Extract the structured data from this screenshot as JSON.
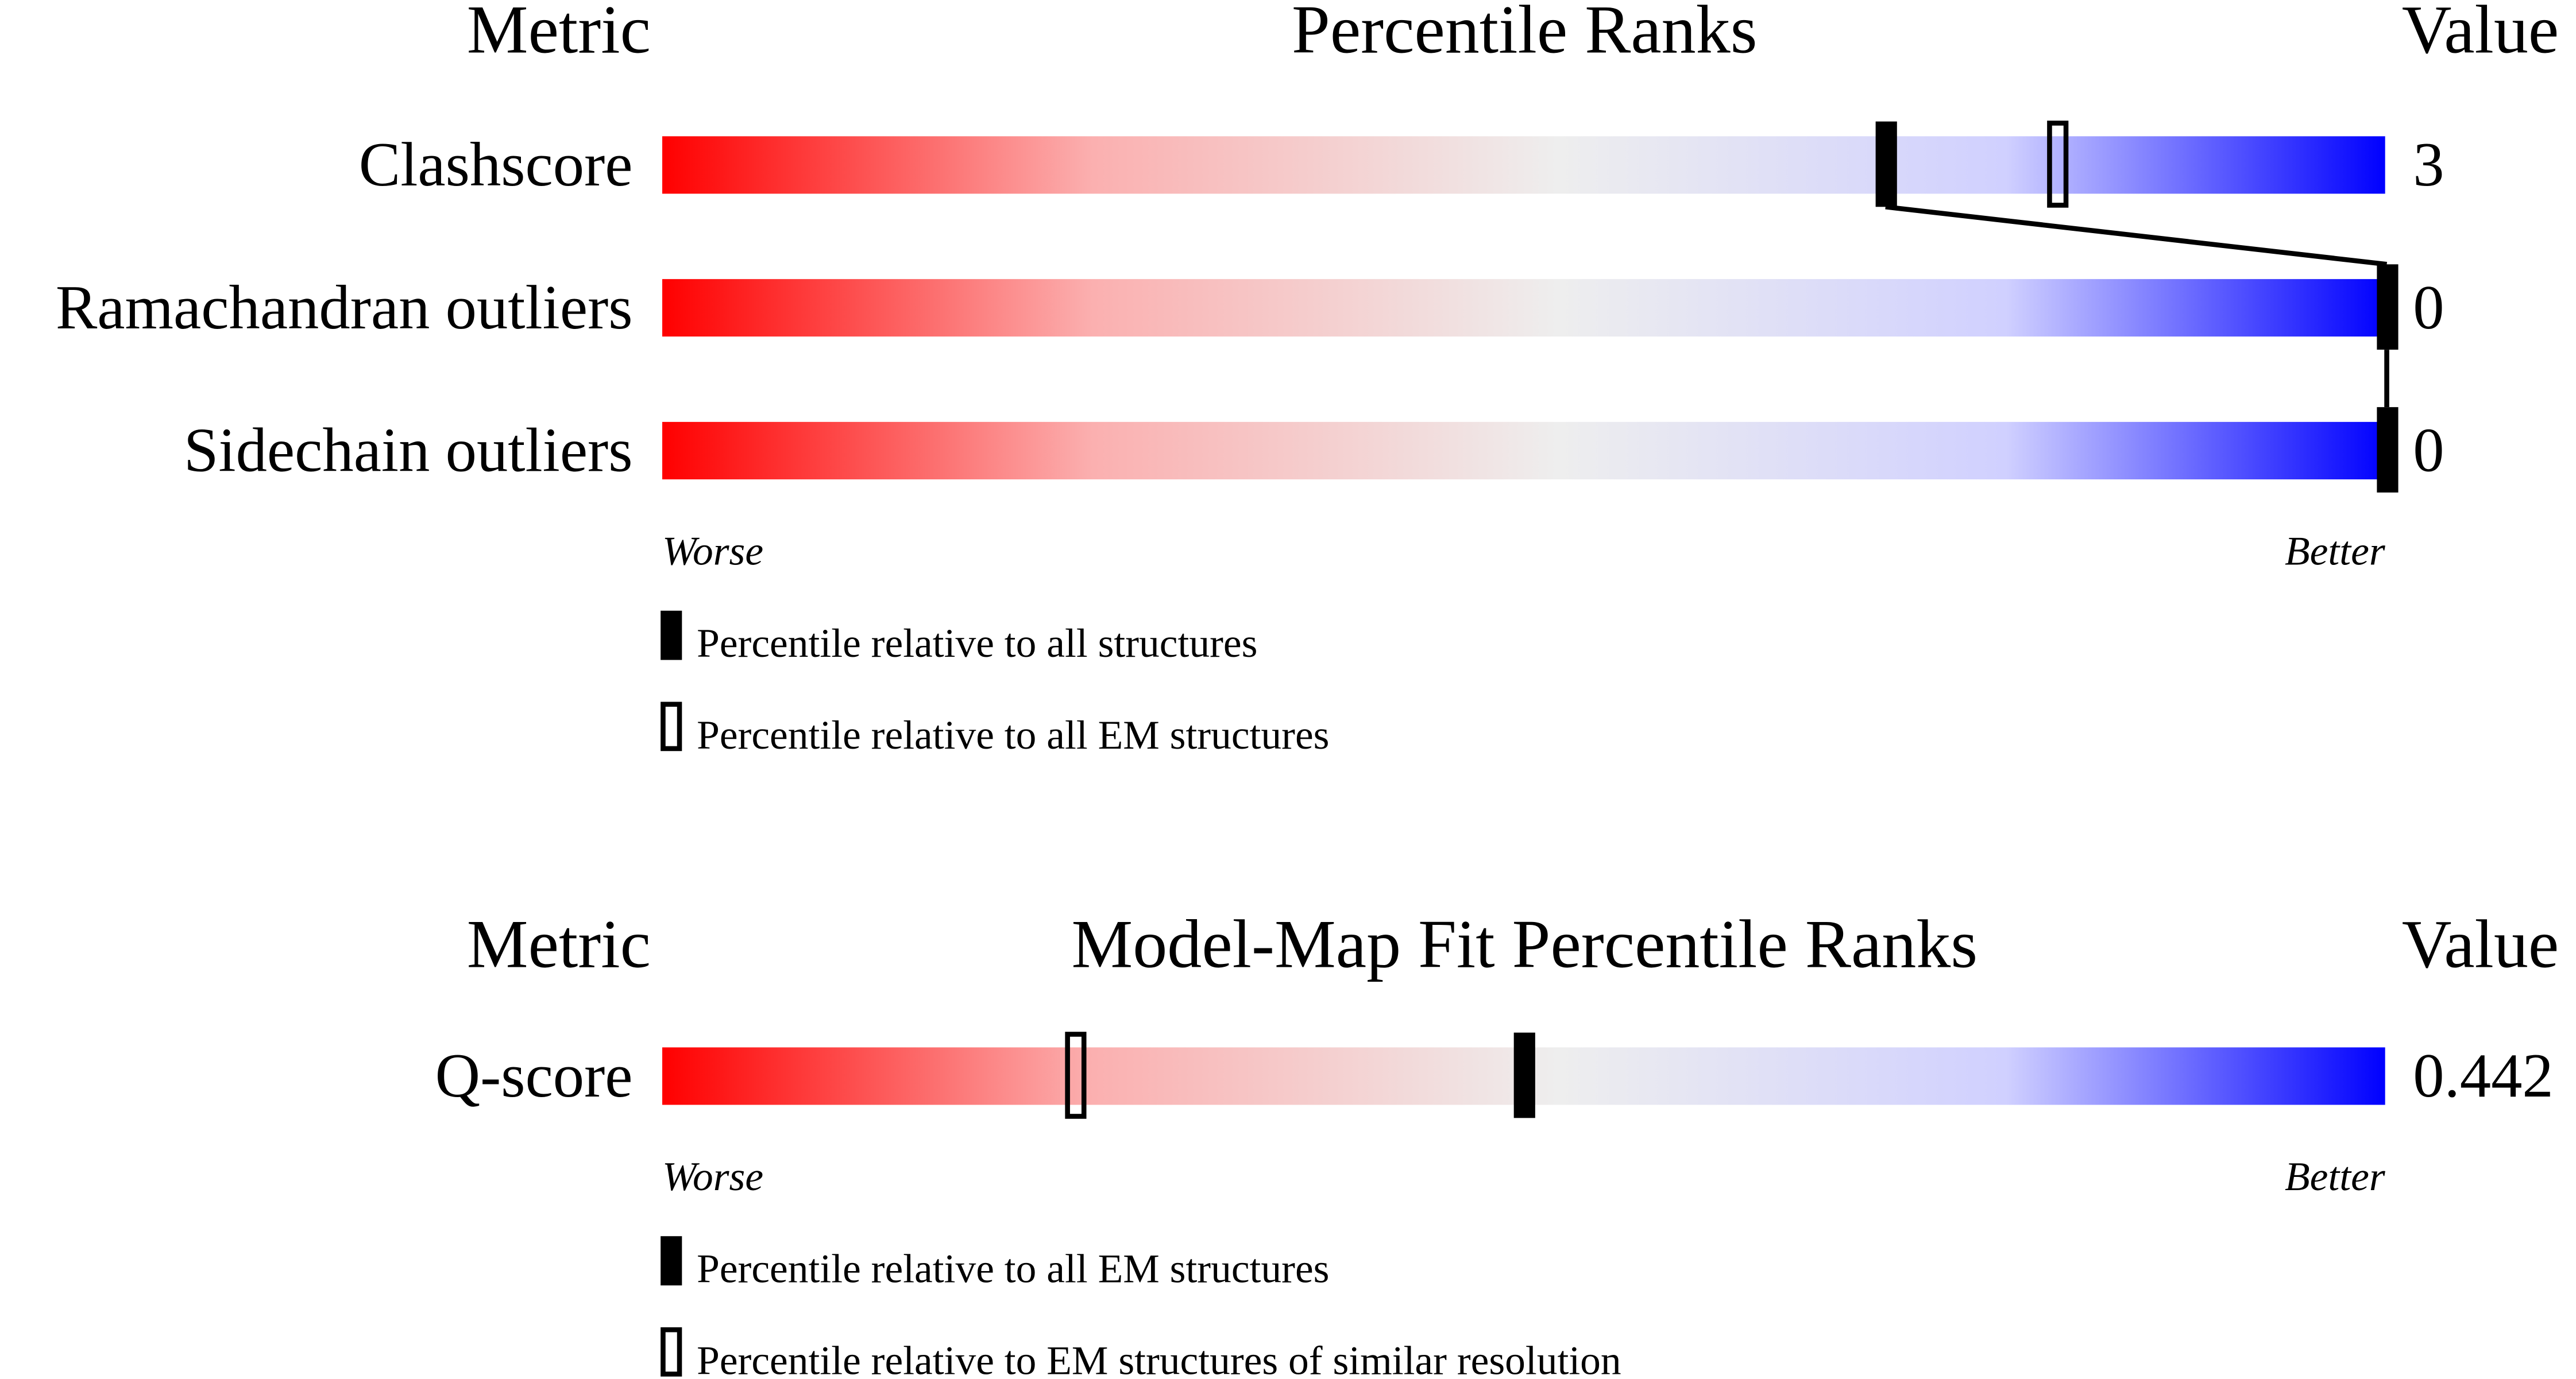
{
  "chart_data": [
    {
      "type": "percentile-bar",
      "title": "Percentile Ranks",
      "metric_header": "Metric",
      "value_header": "Value",
      "xlim": [
        0,
        100
      ],
      "worse_label": "Worse",
      "better_label": "Better",
      "rows": [
        {
          "metric": "Clashscore",
          "value": "3",
          "percentile_all": 71,
          "percentile_em": 81
        },
        {
          "metric": "Ramachandran outliers",
          "value": "0",
          "percentile_all": 100,
          "percentile_em": 100
        },
        {
          "metric": "Sidechain outliers",
          "value": "0",
          "percentile_all": 100,
          "percentile_em": 100
        }
      ],
      "legend": {
        "filled": "Percentile relative to all structures",
        "open": "Percentile relative to all EM structures"
      }
    },
    {
      "type": "percentile-bar",
      "title": "Model-Map Fit Percentile Ranks",
      "metric_header": "Metric",
      "value_header": "Value",
      "xlim": [
        0,
        100
      ],
      "worse_label": "Worse",
      "better_label": "Better",
      "rows": [
        {
          "metric": "Q-score",
          "value": "0.442",
          "percentile_all": 50,
          "percentile_em": 24
        }
      ],
      "legend": {
        "filled": "Percentile relative to all EM structures",
        "open": "Percentile relative to EM structures of similar resolution"
      }
    }
  ],
  "colors": {
    "worse": "#ff0000",
    "middle": "#eeeeee",
    "better": "#0000ff"
  }
}
